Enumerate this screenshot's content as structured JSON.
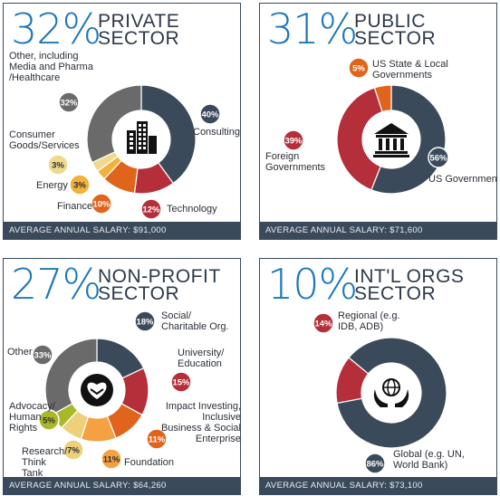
{
  "panels": [
    {
      "pct": "32%",
      "title1": "PRIVATE",
      "title2": "SECTOR",
      "footer": "AVERAGE ANNUAL SALARY: $91,000",
      "icon": "buildings-icon"
    },
    {
      "pct": "31%",
      "title1": "PUBLIC",
      "title2": "SECTOR",
      "footer": "AVERAGE ANNUAL SALARY: $71,600",
      "icon": "government-building-icon"
    },
    {
      "pct": "27%",
      "title1": "NON-PROFIT",
      "title2": "SECTOR",
      "footer": "AVERAGE ANNUAL SALARY: $64,260",
      "icon": "heart-handshake-icon"
    },
    {
      "pct": "10%",
      "title1": "INT'L ORGS",
      "title2": "SECTOR",
      "footer": "AVERAGE ANNUAL SALARY: $73,100",
      "icon": "globe-hands-icon"
    }
  ],
  "chart_data": [
    {
      "type": "pie",
      "title": "32% PRIVATE SECTOR",
      "categories": [
        "Consulting",
        "Technology",
        "Finance",
        "Energy",
        "Consumer Goods/Services",
        "Other, including Media and Pharma /Healthcare"
      ],
      "values": [
        40,
        12,
        10,
        3,
        3,
        32
      ],
      "labels": [
        "40%",
        "12%",
        "10%",
        "3%",
        "3%",
        "32%"
      ],
      "colors": [
        "#3b4a5b",
        "#b52f3b",
        "#e0641c",
        "#f0b23a",
        "#eeda8c",
        "#6a6a6a"
      ]
    },
    {
      "type": "pie",
      "title": "31% PUBLIC SECTOR",
      "categories": [
        "US Government",
        "Foreign Governments",
        "US State & Local Governments"
      ],
      "values": [
        56,
        39,
        5
      ],
      "labels": [
        "56%",
        "39%",
        "5%"
      ],
      "colors": [
        "#3b4a5b",
        "#b52f3b",
        "#e0641c"
      ]
    },
    {
      "type": "pie",
      "title": "27% NON-PROFIT SECTOR",
      "categories": [
        "Social/ Charitable Org.",
        "University/ Education",
        "Impact Investing, Inclusive Business & Social Enterprise",
        "Foundation",
        "Research/ Think Tank",
        "Advocacy/ Human Rights",
        "Other"
      ],
      "values": [
        18,
        15,
        11,
        11,
        7,
        5,
        33
      ],
      "labels": [
        "18%",
        "15%",
        "11%",
        "11%",
        "7%",
        "5%",
        "33%"
      ],
      "colors": [
        "#3b4a5b",
        "#b52f3b",
        "#e0641c",
        "#f5a041",
        "#eed07a",
        "#a8b828",
        "#6a6a6a"
      ]
    },
    {
      "type": "pie",
      "title": "10% INT'L ORGS SECTOR",
      "categories": [
        "Global (e.g. UN, World Bank)",
        "Regional (e.g. IDB, ADB)"
      ],
      "values": [
        86,
        14
      ],
      "labels": [
        "86%",
        "14%"
      ],
      "colors": [
        "#3b4a5b",
        "#b52f3b"
      ]
    }
  ],
  "labels": {
    "p0": {
      "other": "Other, including Media and Pharma /Healthcare",
      "consumer": "Consumer Goods/Services",
      "energy": "Energy",
      "finance": "Finance",
      "consulting": "Consulting",
      "technology": "Technology"
    },
    "p1": {
      "state": "US State & Local Governments",
      "foreign": "Foreign Governments",
      "usgov": "US Government"
    },
    "p2": {
      "social": "Social/ Charitable Org.",
      "university": "University/ Education",
      "impact": "Impact Investing, Inclusive Business & Social Enterprise",
      "foundation": "Foundation",
      "research": "Research/ Think Tank",
      "advocacy": "Advocacy/ Human Rights",
      "other": "Other"
    },
    "p3": {
      "regional": "Regional (e.g. IDB, ADB)",
      "global": "Global (e.g. UN, World Bank)"
    }
  }
}
